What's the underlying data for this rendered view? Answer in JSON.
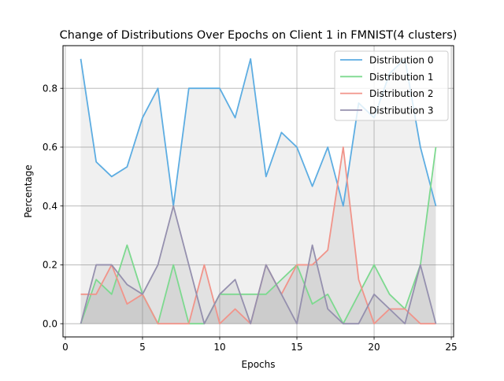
{
  "chart_data": {
    "type": "line",
    "title": "Change of Distributions Over Epochs on Client 1 in FMNIST(4 clusters)",
    "xlabel": "Epochs",
    "ylabel": "Percentage",
    "xlim": [
      -0.15,
      25.15
    ],
    "ylim": [
      -0.045,
      0.945
    ],
    "xticks": [
      0,
      5,
      10,
      15,
      20,
      25
    ],
    "yticks": [
      0.0,
      0.2,
      0.4,
      0.6,
      0.8
    ],
    "xtick_labels": [
      "0",
      "5",
      "10",
      "15",
      "20",
      "25"
    ],
    "ytick_labels": [
      "0.0",
      "0.2",
      "0.4",
      "0.6",
      "0.8"
    ],
    "grid": true,
    "legend_position": "top-right",
    "x": [
      1,
      2,
      3,
      4,
      5,
      6,
      7,
      8,
      9,
      10,
      11,
      12,
      13,
      14,
      15,
      16,
      17,
      18,
      19,
      20,
      21,
      22,
      23,
      24
    ],
    "series": [
      {
        "name": "Distribution 0",
        "color": "#5DADE2",
        "values": [
          0.9,
          0.55,
          0.5,
          0.533,
          0.7,
          0.8,
          0.4,
          0.8,
          0.8,
          0.8,
          0.7,
          0.9,
          0.5,
          0.65,
          0.6,
          0.467,
          0.6,
          0.4,
          0.75,
          0.7,
          0.85,
          0.9,
          0.6,
          0.4
        ]
      },
      {
        "name": "Distribution 1",
        "color": "#7DD98F",
        "values": [
          0.0,
          0.15,
          0.1,
          0.267,
          0.1,
          0.0,
          0.2,
          0.0,
          0.0,
          0.1,
          0.1,
          0.1,
          0.1,
          0.15,
          0.2,
          0.067,
          0.1,
          0.0,
          0.1,
          0.2,
          0.1,
          0.05,
          0.2,
          0.6
        ]
      },
      {
        "name": "Distribution 2",
        "color": "#F1948A",
        "values": [
          0.1,
          0.1,
          0.2,
          0.067,
          0.1,
          0.0,
          0.0,
          0.0,
          0.2,
          0.0,
          0.05,
          0.0,
          0.2,
          0.1,
          0.2,
          0.2,
          0.25,
          0.6,
          0.15,
          0.0,
          0.05,
          0.05,
          0.0,
          0.0
        ]
      },
      {
        "name": "Distribution 3",
        "color": "#9590AE",
        "values": [
          0.0,
          0.2,
          0.2,
          0.133,
          0.1,
          0.2,
          0.4,
          0.2,
          0.0,
          0.1,
          0.15,
          0.0,
          0.2,
          0.1,
          0.0,
          0.267,
          0.05,
          0.0,
          0.0,
          0.1,
          0.05,
          0.0,
          0.2,
          0.0
        ]
      }
    ]
  }
}
